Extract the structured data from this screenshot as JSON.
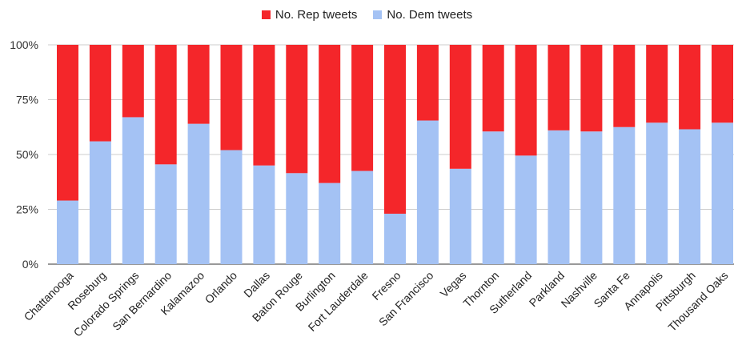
{
  "chart_data": {
    "type": "bar",
    "stacked": true,
    "normalized": true,
    "categories": [
      "Chattanooga",
      "Roseburg",
      "Colorado Springs",
      "San Bernardino",
      "Kalamazoo",
      "Orlando",
      "Dallas",
      "Baton Rouge",
      "Burlington",
      "Fort Lauderdale",
      "Fresno",
      "San Francisco",
      "Vegas",
      "Thornton",
      "Sutherland",
      "Parkland",
      "Nashville",
      "Santa Fe",
      "Annapolis",
      "Pittsburgh",
      "Thousand Oaks"
    ],
    "series": [
      {
        "name": "No. Dem tweets",
        "color": "#a4c2f4",
        "values": [
          0.29,
          0.56,
          0.67,
          0.455,
          0.64,
          0.52,
          0.45,
          0.415,
          0.37,
          0.425,
          0.23,
          0.655,
          0.435,
          0.605,
          0.495,
          0.61,
          0.605,
          0.625,
          0.645,
          0.615,
          0.645
        ]
      },
      {
        "name": "No. Rep tweets",
        "color": "#f4262a",
        "values": [
          0.71,
          0.44,
          0.33,
          0.545,
          0.36,
          0.48,
          0.55,
          0.585,
          0.63,
          0.575,
          0.77,
          0.345,
          0.565,
          0.395,
          0.505,
          0.39,
          0.395,
          0.375,
          0.355,
          0.385,
          0.355
        ]
      }
    ],
    "yticks": [
      "0%",
      "25%",
      "50%",
      "75%",
      "100%"
    ],
    "ylim": [
      0,
      1
    ],
    "legend": {
      "position": "top",
      "items": [
        "No. Rep tweets",
        "No. Dem tweets"
      ]
    },
    "grid": true
  }
}
